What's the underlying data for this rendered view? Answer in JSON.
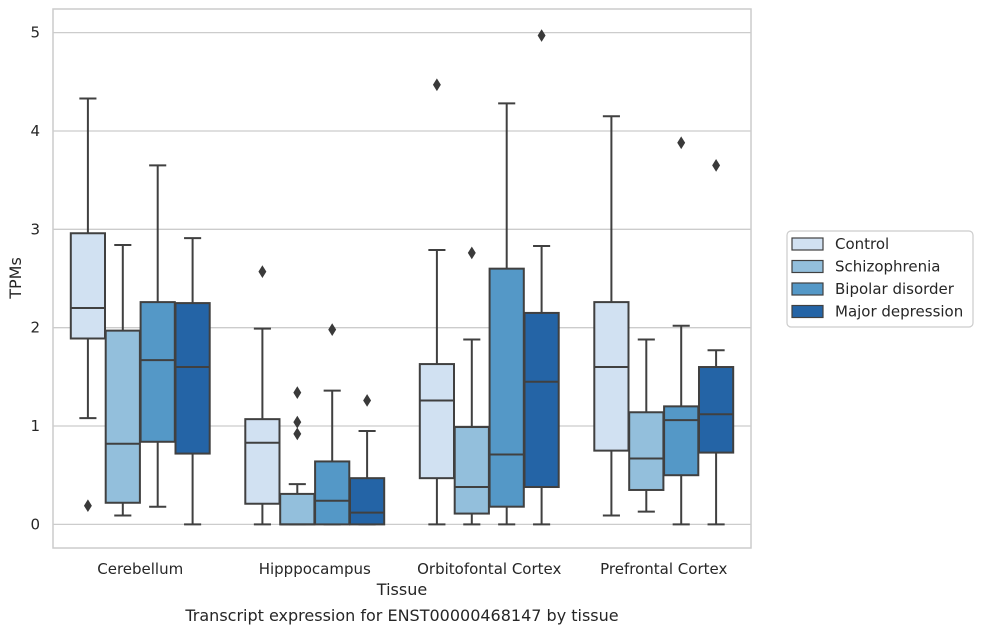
{
  "chart_data": {
    "type": "box",
    "title": "",
    "caption": "Transcript expression for ENST00000468147 by tissue",
    "xlabel": "Tissue",
    "ylabel": "TPMs",
    "ylim": [
      -0.24,
      5.24
    ],
    "yticks": [
      0,
      1,
      2,
      3,
      4,
      5
    ],
    "grid": true,
    "legend_position": "right",
    "categories": [
      "Cerebellum",
      "Hipppocampus",
      "Orbitofontal Cortex",
      "Prefrontal Cortex"
    ],
    "series": [
      {
        "name": "Control",
        "color": "#d1e1f2",
        "boxes": [
          {
            "whisker_low": 1.08,
            "q1": 1.89,
            "median": 2.2,
            "q3": 2.96,
            "whisker_high": 4.33,
            "outliers": [
              0.19
            ]
          },
          {
            "whisker_low": 0.0,
            "q1": 0.21,
            "median": 0.83,
            "q3": 1.07,
            "whisker_high": 1.99,
            "outliers": [
              2.57
            ]
          },
          {
            "whisker_low": 0.0,
            "q1": 0.47,
            "median": 1.26,
            "q3": 1.63,
            "whisker_high": 2.79,
            "outliers": [
              4.47
            ]
          },
          {
            "whisker_low": 0.09,
            "q1": 0.75,
            "median": 1.6,
            "q3": 2.26,
            "whisker_high": 4.15,
            "outliers": []
          }
        ]
      },
      {
        "name": "Schizophrenia",
        "color": "#93bfdc",
        "boxes": [
          {
            "whisker_low": 0.09,
            "q1": 0.22,
            "median": 0.82,
            "q3": 1.97,
            "whisker_high": 2.84,
            "outliers": []
          },
          {
            "whisker_low": 0.0,
            "q1": 0.0,
            "median": 0.0,
            "q3": 0.31,
            "whisker_high": 0.41,
            "outliers": [
              1.34,
              1.04,
              0.92
            ]
          },
          {
            "whisker_low": 0.0,
            "q1": 0.11,
            "median": 0.38,
            "q3": 0.99,
            "whisker_high": 1.88,
            "outliers": [
              2.76
            ]
          },
          {
            "whisker_low": 0.13,
            "q1": 0.35,
            "median": 0.67,
            "q3": 1.14,
            "whisker_high": 1.88,
            "outliers": []
          }
        ]
      },
      {
        "name": "Bipolar disorder",
        "color": "#5498c7",
        "boxes": [
          {
            "whisker_low": 0.18,
            "q1": 0.84,
            "median": 1.67,
            "q3": 2.26,
            "whisker_high": 3.65,
            "outliers": []
          },
          {
            "whisker_low": 0.0,
            "q1": 0.0,
            "median": 0.24,
            "q3": 0.64,
            "whisker_high": 1.36,
            "outliers": [
              1.98
            ]
          },
          {
            "whisker_low": 0.0,
            "q1": 0.18,
            "median": 0.71,
            "q3": 2.6,
            "whisker_high": 4.28,
            "outliers": []
          },
          {
            "whisker_low": 0.0,
            "q1": 0.5,
            "median": 1.06,
            "q3": 1.2,
            "whisker_high": 2.02,
            "outliers": [
              3.88
            ]
          }
        ]
      },
      {
        "name": "Major depression",
        "color": "#2464a6",
        "boxes": [
          {
            "whisker_low": 0.0,
            "q1": 0.72,
            "median": 1.6,
            "q3": 2.25,
            "whisker_high": 2.91,
            "outliers": []
          },
          {
            "whisker_low": 0.0,
            "q1": 0.0,
            "median": 0.12,
            "q3": 0.47,
            "whisker_high": 0.95,
            "outliers": [
              1.26
            ]
          },
          {
            "whisker_low": 0.0,
            "q1": 0.38,
            "median": 1.45,
            "q3": 2.15,
            "whisker_high": 2.83,
            "outliers": [
              4.97
            ]
          },
          {
            "whisker_low": 0.0,
            "q1": 0.73,
            "median": 1.12,
            "q3": 1.6,
            "whisker_high": 1.77,
            "outliers": [
              3.65
            ]
          }
        ]
      }
    ]
  }
}
